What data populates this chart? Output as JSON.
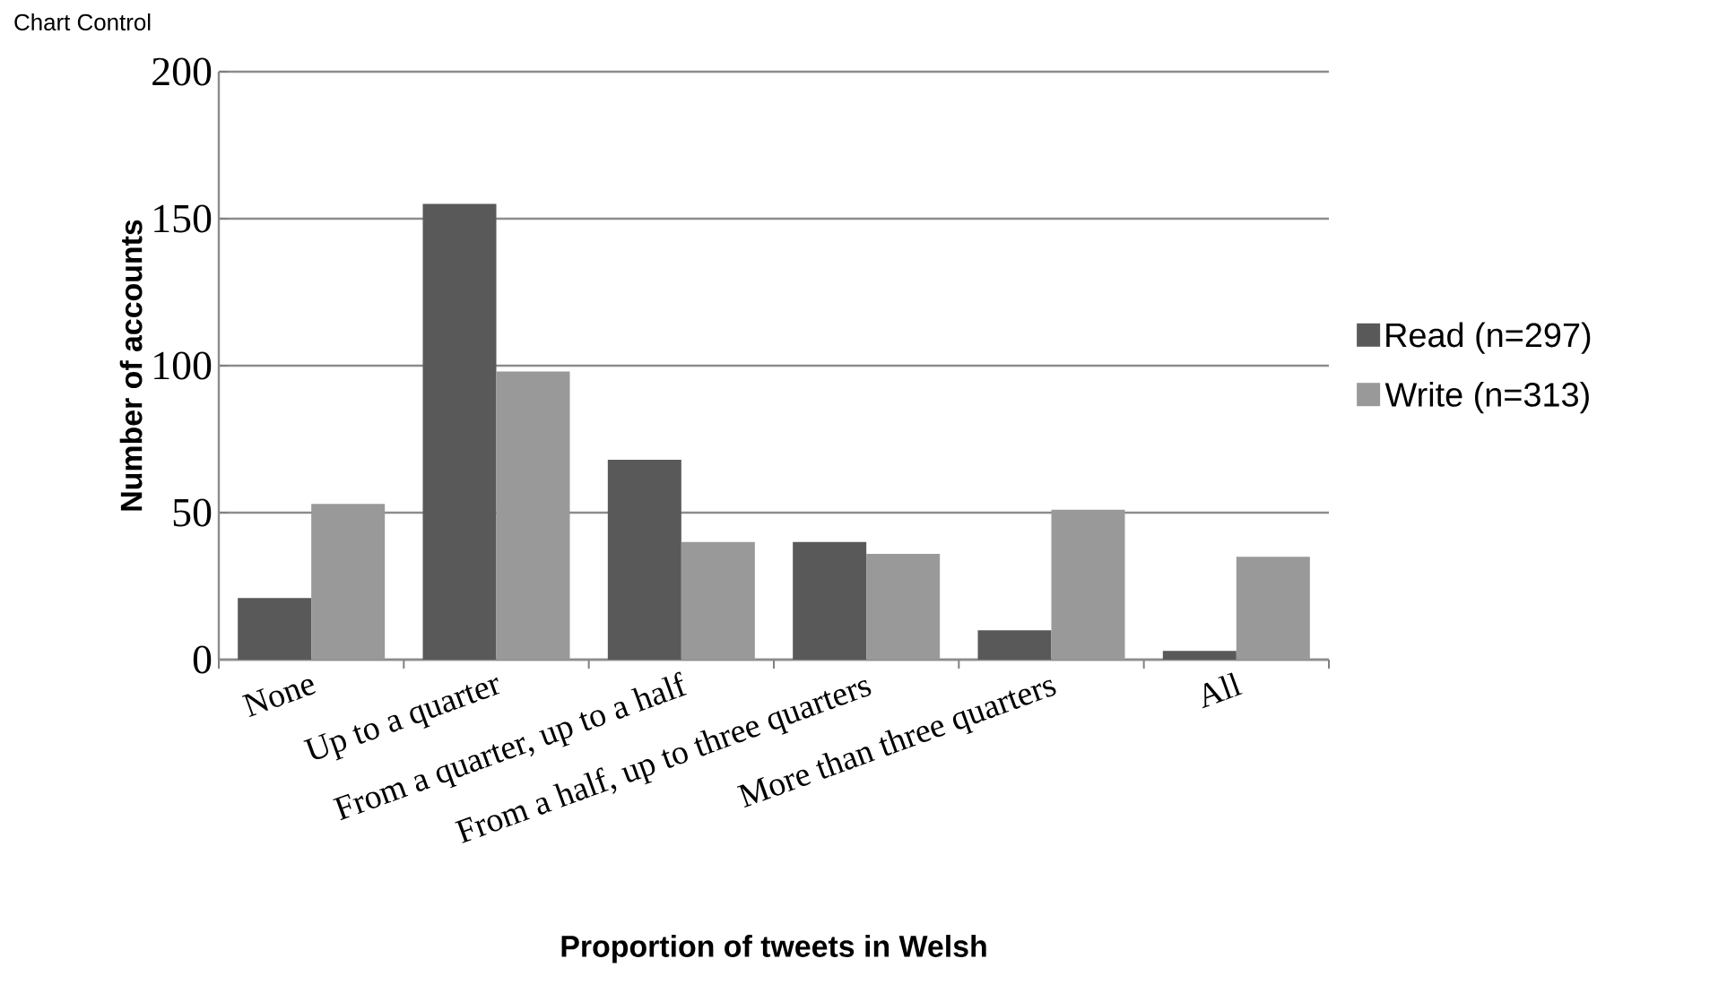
{
  "chart_data": {
    "type": "bar",
    "xlabel": "Proportion of tweets in Welsh",
    "ylabel": "Number of accounts",
    "categories": [
      "None",
      "Up to a quarter",
      "From a quarter, up to a half",
      "From a half, up to three quarters",
      "More than three quarters",
      "All"
    ],
    "series": [
      {
        "name": "Read (n=297)",
        "color": "#595959",
        "values": [
          21,
          155,
          68,
          40,
          10,
          3
        ]
      },
      {
        "name": "Write (n=313)",
        "color": "#999999",
        "values": [
          53,
          98,
          40,
          36,
          51,
          35
        ]
      }
    ],
    "ylim": [
      0,
      200
    ],
    "yticks": [
      0,
      50,
      100,
      150,
      200
    ],
    "grid": "y",
    "legend": "right",
    "annotations": [
      "Chart Control"
    ]
  }
}
